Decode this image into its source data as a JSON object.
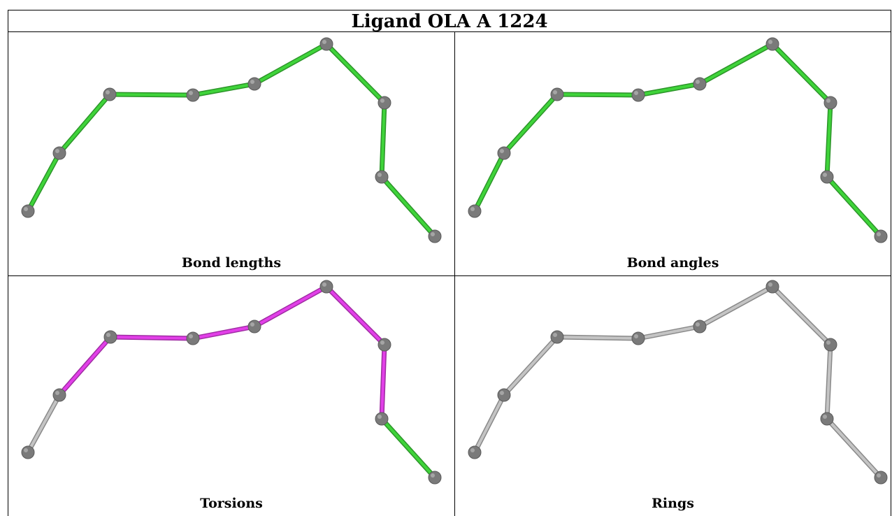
{
  "title": "Ligand OLA A 1224",
  "panels": [
    {
      "caption": "Bond lengths",
      "bond_colors": [
        "green",
        "green",
        "green",
        "green",
        "green",
        "green",
        "green",
        "green",
        "green",
        "green"
      ]
    },
    {
      "caption": "Bond angles",
      "bond_colors": [
        "green",
        "green",
        "green",
        "green",
        "green",
        "green",
        "green",
        "green",
        "green",
        "green"
      ]
    },
    {
      "caption": "Torsions",
      "bond_colors": [
        "grey",
        "magenta",
        "magenta",
        "magenta",
        "magenta",
        "magenta",
        "magenta",
        "green",
        "grey",
        "grey"
      ]
    },
    {
      "caption": "Rings",
      "bond_colors": [
        "grey",
        "grey",
        "grey",
        "grey",
        "grey",
        "grey",
        "grey",
        "grey",
        "grey",
        "grey"
      ]
    }
  ],
  "colors": {
    "green": "#3fd43a",
    "magenta": "#e23fe8",
    "grey": "#c4c4c4",
    "atom": "#7a7a7a"
  }
}
